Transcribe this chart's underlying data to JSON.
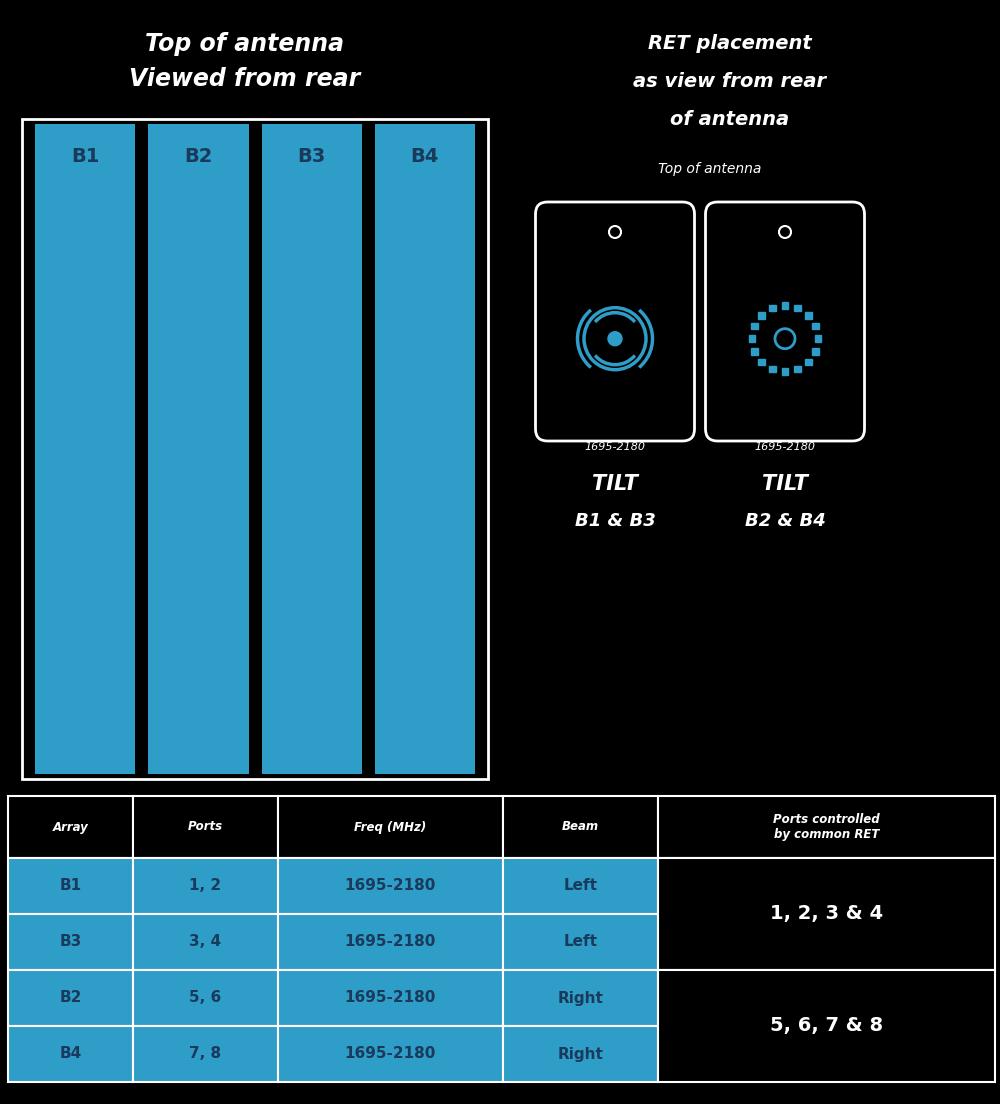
{
  "bg_color": "#000000",
  "blue_color": "#2E9DC8",
  "dark_blue": "#1a3a5c",
  "white": "#ffffff",
  "title_left_line1": "Top of antenna",
  "title_left_line2": "Viewed from rear",
  "beam_labels": [
    "B1",
    "B2",
    "B3",
    "B4"
  ],
  "title_right_line1": "RET placement",
  "title_right_line2": "as view from rear",
  "title_right_line3": "of antenna",
  "subtitle_right": "Top of antenna",
  "ret_left_freq": "1695-2180",
  "ret_left_label1": "TILT",
  "ret_left_label2": "B1 & B3",
  "ret_right_freq": "1695-2180",
  "ret_right_label1": "TILT",
  "ret_right_label2": "B2 & B4",
  "table_headers": [
    "Array",
    "Ports",
    "Freq (MHz)",
    "Beam",
    "Ports controlled\nby common RET"
  ],
  "table_data": [
    [
      "B1",
      "1, 2",
      "1695-2180",
      "Left",
      "1, 2, 3 & 4"
    ],
    [
      "B3",
      "3, 4",
      "1695-2180",
      "Left",
      ""
    ],
    [
      "B2",
      "5, 6",
      "1695-2180",
      "Right",
      "5, 6, 7 & 8"
    ],
    [
      "B4",
      "7, 8",
      "1695-2180",
      "Right",
      ""
    ]
  ],
  "fig_w": 10.0,
  "fig_h": 11.04,
  "dpi": 100
}
